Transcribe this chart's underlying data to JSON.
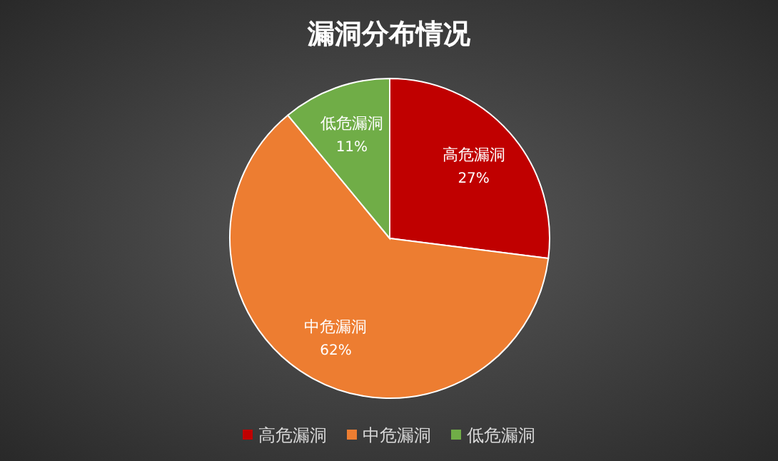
{
  "chart_data": {
    "type": "pie",
    "title": "漏洞分布情况",
    "categories": [
      "高危漏洞",
      "中危漏洞",
      "低危漏洞"
    ],
    "values": [
      27,
      62,
      11
    ],
    "colors": [
      "#c00000",
      "#ed7d31",
      "#70ad47"
    ],
    "value_labels": [
      "27%",
      "62%",
      "11%"
    ],
    "legend": "bottom"
  }
}
